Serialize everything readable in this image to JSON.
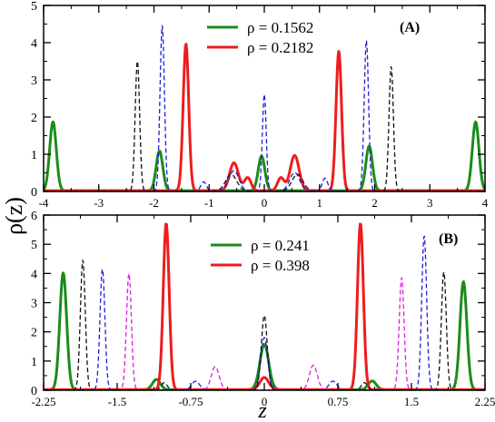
{
  "figure": {
    "ylabel": "ρ(z)",
    "xlabel": "z"
  },
  "chart_data": [
    {
      "type": "line",
      "panel_label": "(A)",
      "xlim": [
        -4,
        4
      ],
      "ylim": [
        0,
        5
      ],
      "xticks": [
        -4,
        -3,
        -2,
        -1,
        0,
        1,
        2,
        3,
        4
      ],
      "xtick_labels": [
        "-4",
        "-3",
        "-2",
        "-1",
        "0",
        "1",
        "2",
        "3",
        "4"
      ],
      "yticks": [
        0,
        1,
        2,
        3,
        4,
        5
      ],
      "ytick_labels": [
        "0",
        "1",
        "2",
        "3",
        "4",
        "5"
      ],
      "legend_position": "top-center",
      "grid": false,
      "series": [
        {
          "name": "ρ = 0.1562",
          "color": "#1a8c1a",
          "dash": "solid",
          "width": 3,
          "baseline": 0.02,
          "peaks": [
            {
              "x": -3.83,
              "h": 1.85,
              "w": 0.06
            },
            {
              "x": -1.9,
              "h": 1.07,
              "w": 0.06
            },
            {
              "x": -0.05,
              "h": 0.93,
              "w": 0.06
            },
            {
              "x": 1.9,
              "h": 1.2,
              "w": 0.06
            },
            {
              "x": 3.83,
              "h": 1.85,
              "w": 0.06
            }
          ]
        },
        {
          "name": "ρ = 0.2182",
          "color": "#ee1c1c",
          "dash": "solid",
          "width": 3,
          "baseline": 0.02,
          "peaks": [
            {
              "x": -1.42,
              "h": 3.95,
              "w": 0.05
            },
            {
              "x": -0.55,
              "h": 0.75,
              "w": 0.08
            },
            {
              "x": -0.3,
              "h": 0.35,
              "w": 0.06
            },
            {
              "x": 0.3,
              "h": 0.35,
              "w": 0.06
            },
            {
              "x": 0.55,
              "h": 0.95,
              "w": 0.08
            },
            {
              "x": 1.35,
              "h": 3.75,
              "w": 0.05
            }
          ]
        },
        {
          "name": "",
          "color": "#1f1fd6",
          "dash": "dashed",
          "width": 1.3,
          "baseline": 0.01,
          "peaks": [
            {
              "x": -1.85,
              "h": 4.45,
              "w": 0.04
            },
            {
              "x": -0.55,
              "h": 0.55,
              "w": 0.09
            },
            {
              "x": -1.1,
              "h": 0.25,
              "w": 0.05
            },
            {
              "x": 0.0,
              "h": 2.6,
              "w": 0.035
            },
            {
              "x": 0.55,
              "h": 0.5,
              "w": 0.09
            },
            {
              "x": 1.1,
              "h": 0.35,
              "w": 0.05
            },
            {
              "x": 1.85,
              "h": 4.05,
              "w": 0.04
            }
          ]
        },
        {
          "name": "",
          "color": "#111111",
          "dash": "dashed",
          "width": 1.3,
          "baseline": 0.01,
          "peaks": [
            {
              "x": -2.3,
              "h": 3.5,
              "w": 0.04
            },
            {
              "x": -0.6,
              "h": 0.45,
              "w": 0.1
            },
            {
              "x": 0.6,
              "h": 0.45,
              "w": 0.1
            },
            {
              "x": 2.3,
              "h": 3.35,
              "w": 0.04
            }
          ]
        }
      ]
    },
    {
      "type": "line",
      "panel_label": "(B)",
      "xlim": [
        -2.25,
        2.25
      ],
      "ylim": [
        0,
        6
      ],
      "xticks": [
        -2.25,
        -1.5,
        -0.75,
        0,
        0.75,
        1.5,
        2.25
      ],
      "xtick_labels": [
        "-2.25",
        "-1.5",
        "-0.75",
        "0",
        "0.75",
        "1.5",
        "2.25"
      ],
      "yticks": [
        0,
        1,
        2,
        3,
        4,
        5,
        6
      ],
      "ytick_labels": [
        "0",
        "1",
        "2",
        "3",
        "4",
        "5",
        "6"
      ],
      "legend_position": "top-center",
      "grid": false,
      "series": [
        {
          "name": "ρ = 0.241",
          "color": "#1a8c1a",
          "dash": "solid",
          "width": 3,
          "baseline": 0.02,
          "peaks": [
            {
              "x": -2.05,
              "h": 4.0,
              "w": 0.035
            },
            {
              "x": -1.1,
              "h": 0.35,
              "w": 0.04
            },
            {
              "x": 0.0,
              "h": 1.55,
              "w": 0.045
            },
            {
              "x": 1.1,
              "h": 0.3,
              "w": 0.04
            },
            {
              "x": 2.03,
              "h": 3.7,
              "w": 0.035
            }
          ]
        },
        {
          "name": "ρ = 0.398",
          "color": "#ee1c1c",
          "dash": "solid",
          "width": 3,
          "baseline": 0.02,
          "peaks": [
            {
              "x": -1.0,
              "h": 5.7,
              "w": 0.03
            },
            {
              "x": 0.0,
              "h": 0.42,
              "w": 0.045
            },
            {
              "x": 0.98,
              "h": 5.7,
              "w": 0.03
            }
          ]
        },
        {
          "name": "",
          "color": "#e01ee0",
          "dash": "dashed",
          "width": 1.3,
          "baseline": 0.01,
          "peaks": [
            {
              "x": -1.38,
              "h": 4.0,
              "w": 0.025
            },
            {
              "x": -0.5,
              "h": 0.8,
              "w": 0.04
            },
            {
              "x": 0.5,
              "h": 0.85,
              "w": 0.04
            },
            {
              "x": 1.4,
              "h": 3.85,
              "w": 0.025
            }
          ]
        },
        {
          "name": "",
          "color": "#1f1fd6",
          "dash": "dashed",
          "width": 1.3,
          "baseline": 0.01,
          "peaks": [
            {
              "x": -1.65,
              "h": 4.15,
              "w": 0.025
            },
            {
              "x": -0.7,
              "h": 0.3,
              "w": 0.04
            },
            {
              "x": 0.0,
              "h": 1.8,
              "w": 0.035
            },
            {
              "x": 0.7,
              "h": 0.3,
              "w": 0.04
            },
            {
              "x": 1.63,
              "h": 5.3,
              "w": 0.025
            }
          ]
        },
        {
          "name": "",
          "color": "#111111",
          "dash": "dashed",
          "width": 1.3,
          "baseline": 0.01,
          "peaks": [
            {
              "x": -1.85,
              "h": 4.45,
              "w": 0.025
            },
            {
              "x": -1.02,
              "h": 0.25,
              "w": 0.03
            },
            {
              "x": 0.0,
              "h": 2.55,
              "w": 0.03
            },
            {
              "x": 1.02,
              "h": 0.25,
              "w": 0.03
            },
            {
              "x": 1.83,
              "h": 4.05,
              "w": 0.025
            }
          ]
        }
      ]
    }
  ]
}
